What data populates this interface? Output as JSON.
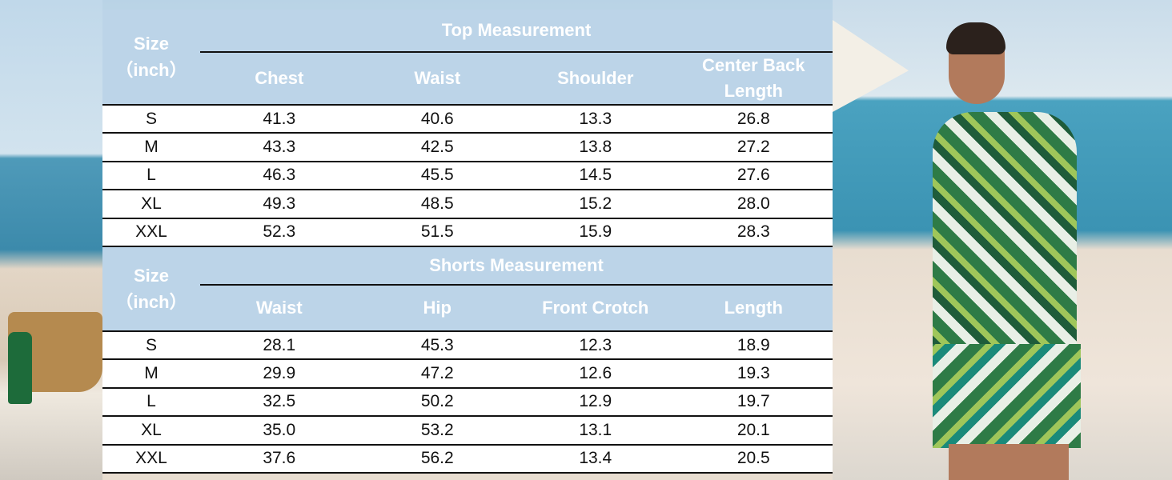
{
  "top": {
    "size_label": "Size",
    "unit_label": "（inch）",
    "title": "Top Measurement",
    "columns": [
      "Chest",
      "Waist",
      "Shoulder",
      "Center Back Length"
    ],
    "rows": [
      [
        "S",
        "41.3",
        "40.6",
        "13.3",
        "26.8"
      ],
      [
        "M",
        "43.3",
        "42.5",
        "13.8",
        "27.2"
      ],
      [
        "L",
        "46.3",
        "45.5",
        "14.5",
        "27.6"
      ],
      [
        "XL",
        "49.3",
        "48.5",
        "15.2",
        "28.0"
      ],
      [
        "XXL",
        "52.3",
        "51.5",
        "15.9",
        "28.3"
      ]
    ]
  },
  "shorts": {
    "size_label": "Size",
    "unit_label": "（inch）",
    "title": "Shorts Measurement",
    "columns": [
      "Waist",
      "Hip",
      "Front Crotch",
      "Length"
    ],
    "rows": [
      [
        "S",
        "28.1",
        "45.3",
        "12.3",
        "18.9"
      ],
      [
        "M",
        "29.9",
        "47.2",
        "12.6",
        "19.3"
      ],
      [
        "L",
        "32.5",
        "50.2",
        "12.9",
        "19.7"
      ],
      [
        "XL",
        "35.0",
        "53.2",
        "13.1",
        "20.1"
      ],
      [
        "XXL",
        "37.6",
        "56.2",
        "13.4",
        "20.5"
      ]
    ]
  },
  "colors": {
    "header": "#bcd4e8",
    "border": "#111111"
  }
}
